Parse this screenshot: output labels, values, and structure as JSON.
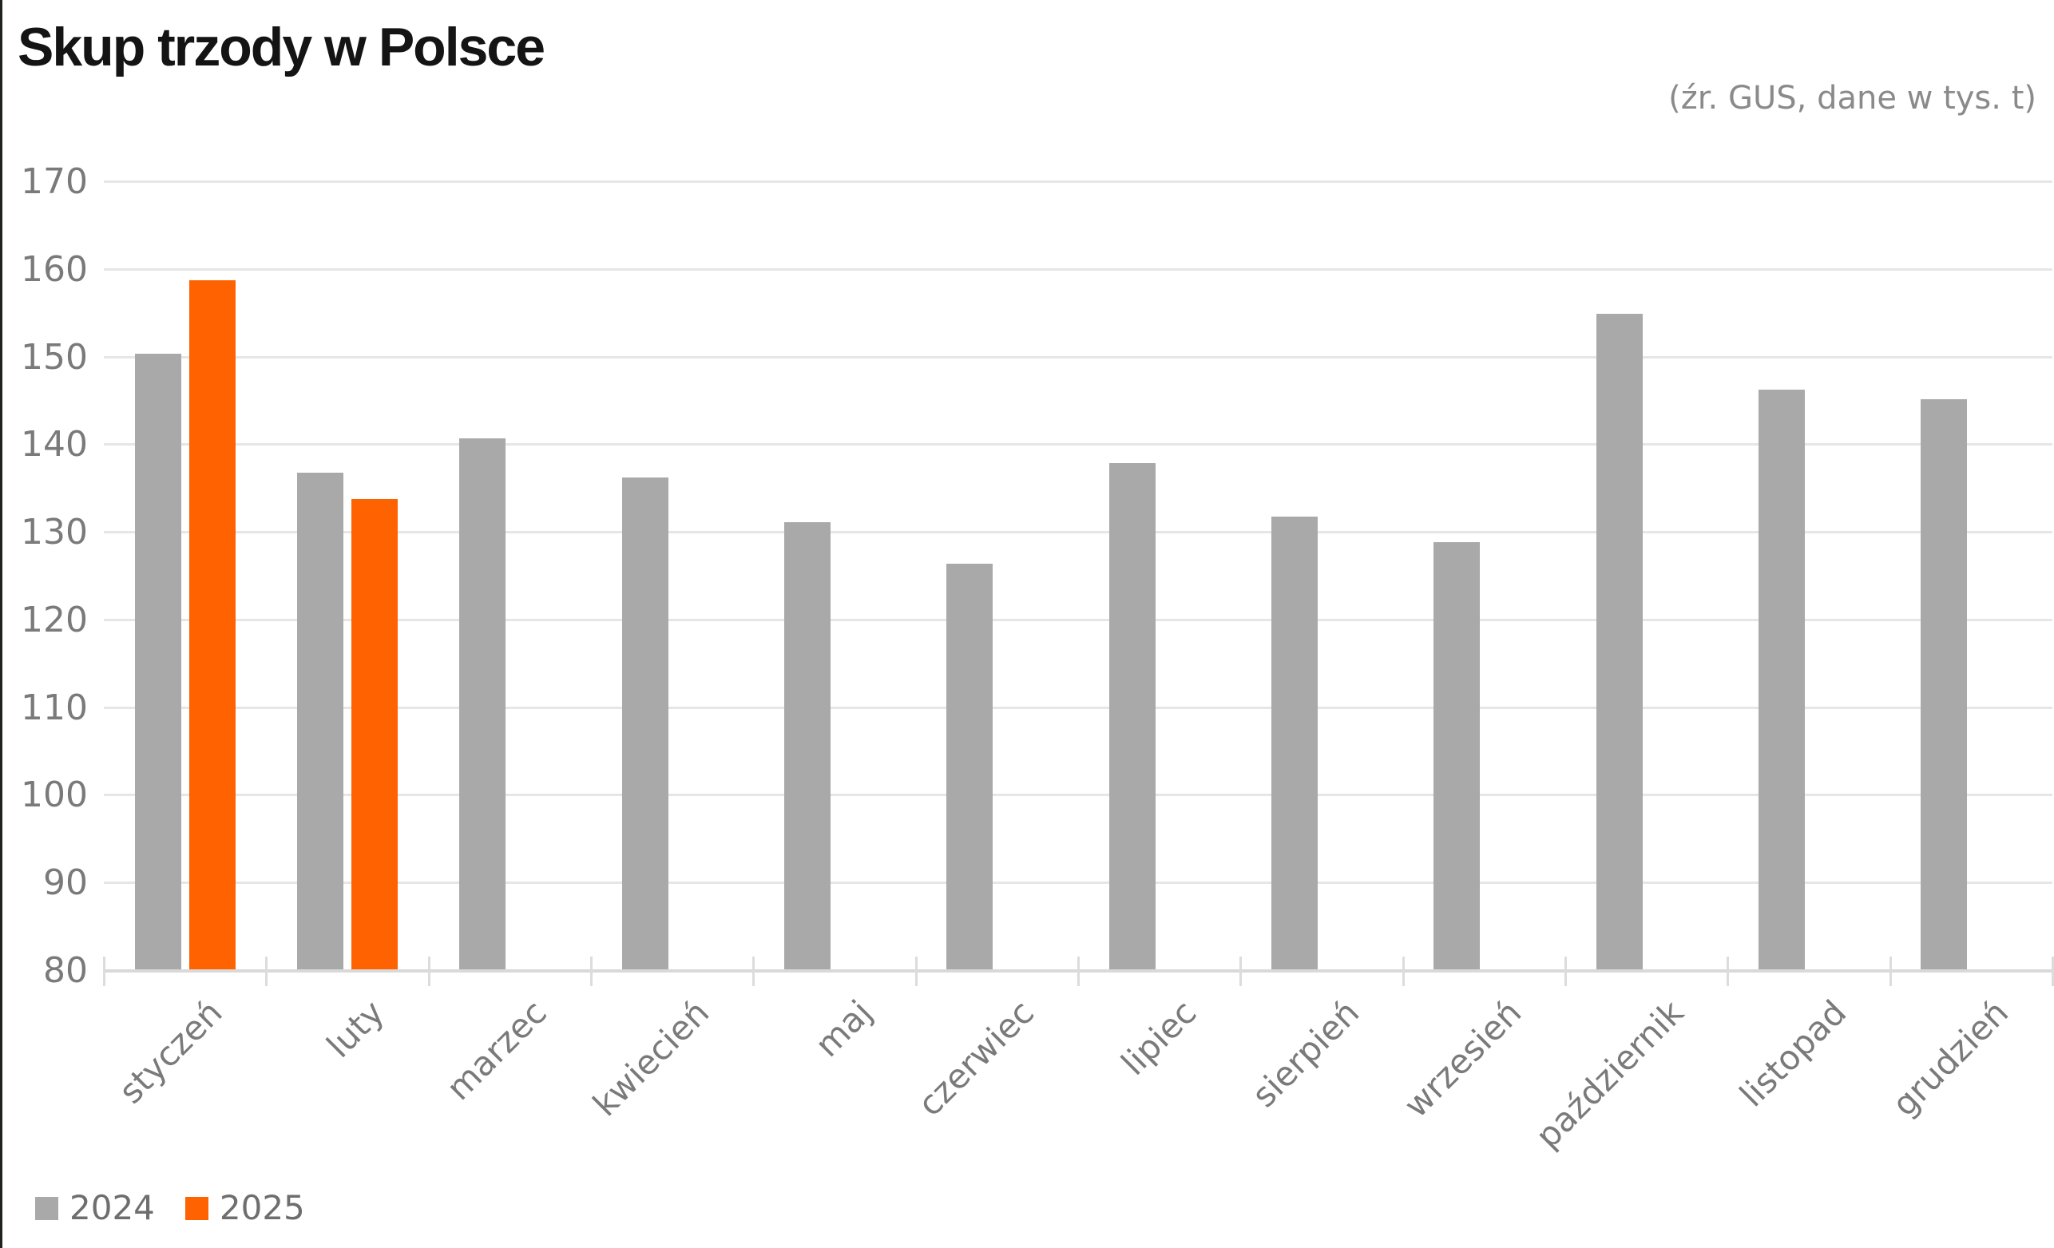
{
  "title": "Skup trzody w Polsce",
  "source_note": "(źr. GUS, dane w tys. t)",
  "colors": {
    "series_2024": "#a9a9a9",
    "series_2025": "#ff6200",
    "gridline": "#e6e6e6",
    "axis": "#d9d9d9",
    "axis_text": "#7a7a7a",
    "title_text": "#141414",
    "source_text": "#8a8a8a",
    "legend_text": "#6e6e6e"
  },
  "legend": [
    {
      "label": "2024",
      "color": "#a9a9a9"
    },
    {
      "label": "2025",
      "color": "#ff6200"
    }
  ],
  "chart_data": {
    "type": "bar",
    "title": "Skup trzody w Polsce",
    "subtitle": "(źr. GUS, dane w tys. t)",
    "unit": "tys. t",
    "categories": [
      "styczeń",
      "luty",
      "marzec",
      "kwiecień",
      "maj",
      "czerwiec",
      "lipiec",
      "sierpień",
      "wrzesień",
      "październik",
      "listopad",
      "grudzień"
    ],
    "series": [
      {
        "name": "2024",
        "color": "#a9a9a9",
        "values": [
          150.4,
          136.8,
          140.8,
          136.3,
          131.2,
          126.5,
          137.9,
          131.8,
          128.9,
          155.0,
          146.3,
          145.2
        ]
      },
      {
        "name": "2025",
        "color": "#ff6200",
        "values": [
          158.8,
          133.8,
          null,
          null,
          null,
          null,
          null,
          null,
          null,
          null,
          null,
          null
        ]
      }
    ],
    "xlabel": "",
    "ylabel": "",
    "ylim": [
      80,
      170
    ],
    "ytick_step": 10,
    "grid": "horizontal",
    "x_label_rotation": -45,
    "legend_position": "bottom-left"
  }
}
